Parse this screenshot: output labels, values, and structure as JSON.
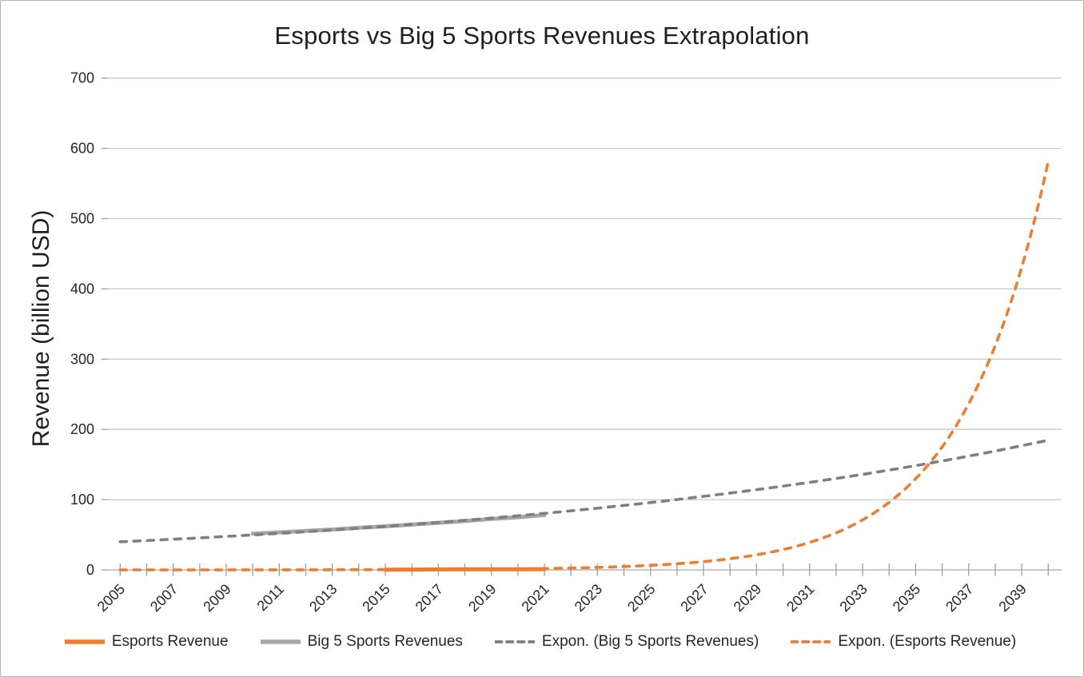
{
  "chart_data": {
    "type": "line",
    "title": "Esports vs Big 5 Sports Revenues Extrapolation",
    "xlabel": "",
    "ylabel": "Revenue (billion USD)",
    "x_range": [
      2005,
      2040
    ],
    "x_tick_interval_years": 1,
    "x_tick_labels": [
      "2005",
      "2007",
      "2009",
      "2011",
      "2013",
      "2015",
      "2017",
      "2019",
      "2021",
      "2023",
      "2025",
      "2027",
      "2029",
      "2031",
      "2033",
      "2035",
      "2037",
      "2039"
    ],
    "ylim": [
      0,
      700
    ],
    "y_ticks": [
      0,
      100,
      200,
      300,
      400,
      500,
      600,
      700
    ],
    "grid": "horizontal",
    "legend_position": "bottom",
    "series": [
      {
        "name": "Esports Revenue",
        "kind": "actual",
        "style": "solid",
        "color": "#ED7D31",
        "x": [
          2015,
          2016,
          2017,
          2018,
          2019,
          2020,
          2021
        ],
        "values": [
          0.33,
          0.49,
          0.66,
          0.87,
          0.96,
          0.95,
          1.08
        ]
      },
      {
        "name": "Big 5 Sports Revenues",
        "kind": "actual",
        "style": "solid",
        "color": "#A6A6A6",
        "x": [
          2010,
          2011,
          2012,
          2013,
          2014,
          2015,
          2016,
          2017,
          2018,
          2019,
          2020,
          2021
        ],
        "values": [
          51.5,
          53.5,
          55.5,
          57.5,
          60,
          62,
          64.5,
          67,
          69.5,
          72.5,
          75,
          78
        ]
      },
      {
        "name": "Expon. (Big 5 Sports Revenues)",
        "kind": "trendline",
        "style": "dashed",
        "color": "#7F7F7F",
        "model": "exponential",
        "formula": "y = 40.0 * exp(0.0437 * (t - 2005))",
        "a": 40.0,
        "b": 0.0437,
        "t0": 2005,
        "x_start": 2005,
        "x_end": 2040,
        "value_at_start": 40,
        "value_at_end": 185
      },
      {
        "name": "Expon. (Esports Revenue)",
        "kind": "trendline",
        "style": "dashed",
        "color": "#ED7D31",
        "model": "exponential",
        "formula": "y = 0.016 * exp(0.300 * (t - 2005))",
        "a": 0.016,
        "b": 0.3,
        "t0": 2005,
        "x_start": 2005,
        "x_end": 2040,
        "value_at_start": 0.02,
        "value_at_end": 580
      }
    ],
    "annotations": {
      "trendlines_cross": {
        "year": 2035.5,
        "value": 152
      }
    },
    "legend": [
      "Esports Revenue",
      "Big 5 Sports Revenues",
      "Expon. (Big 5 Sports Revenues)",
      "Expon. (Esports Revenue)"
    ]
  },
  "colors": {
    "orange": "#ED7D31",
    "gray_solid": "#A6A6A6",
    "gray_dashed": "#7F7F7F",
    "gridline": "#C9C9C9",
    "axis_line": "#ABABAB",
    "tick_mark": "#9E9E9E",
    "text": "#262626",
    "title_text": "#1F1F1F",
    "frame_border": "#B3B3B3"
  }
}
